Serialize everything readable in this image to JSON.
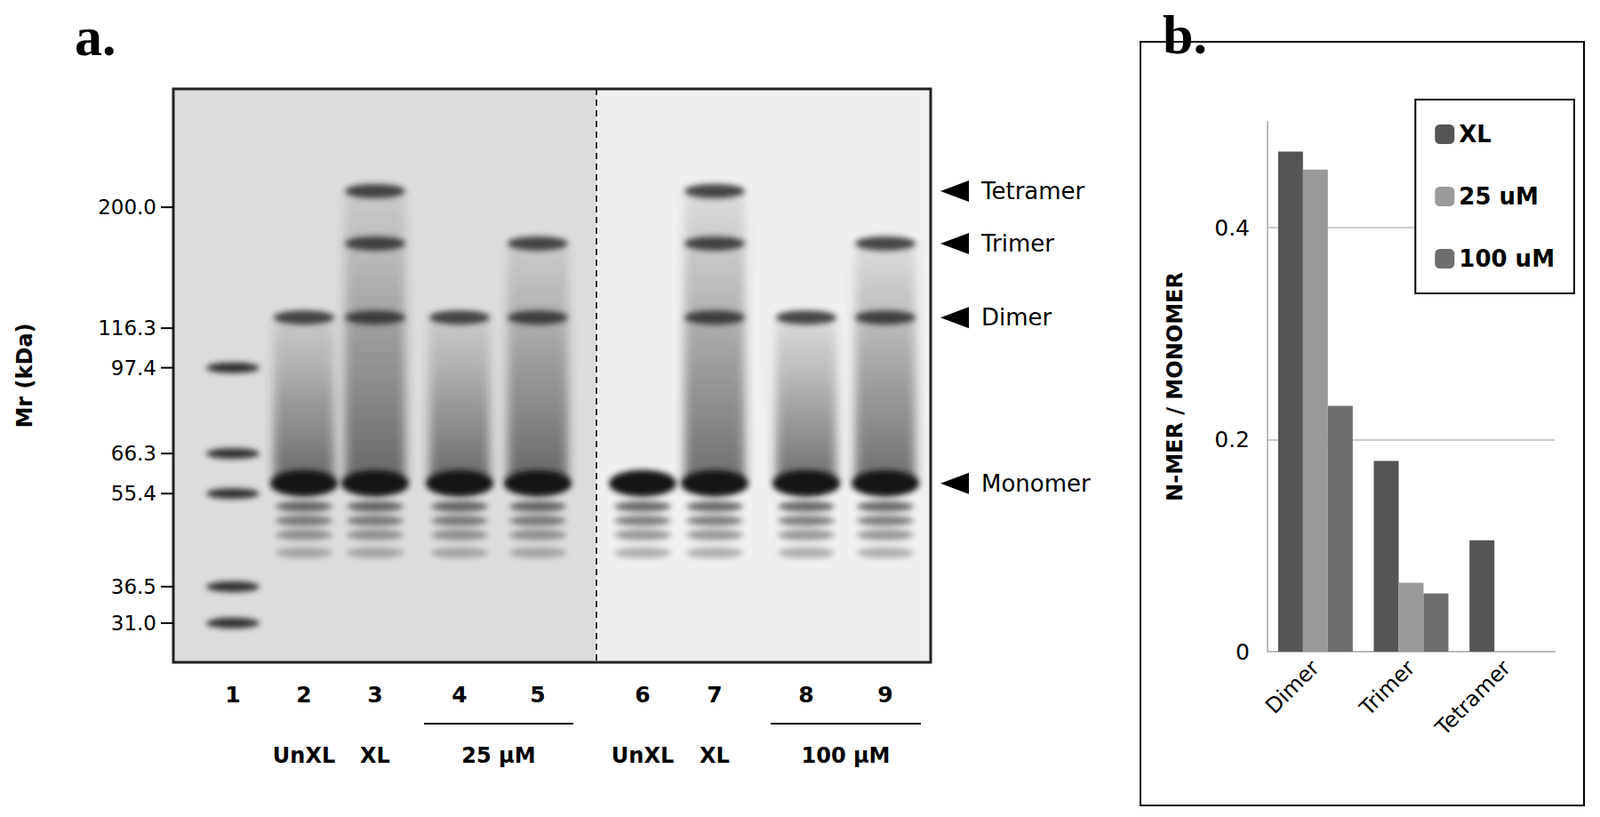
{
  "figure": {
    "panel_a": {
      "label": "a.",
      "y_label": "Mr (kDa)",
      "ylim": [
        26,
        340
      ],
      "ticks": [
        {
          "value": 200,
          "label": "200.0"
        },
        116.3,
        97.4,
        66.3,
        55.4,
        36.5,
        {
          "value": 31,
          "label": "31.0"
        }
      ],
      "bands": [
        {
          "label": "Tetramer",
          "mw": 215
        },
        {
          "label": "Trimer",
          "mw": 170
        },
        {
          "label": "Dimer",
          "mw": 122
        },
        {
          "label": "Monomer",
          "mw": 58
        }
      ],
      "lanes": [
        {
          "number": "1",
          "label": null,
          "ladder": [
            97.4,
            66.3,
            55.4,
            36.5,
            31.0
          ]
        },
        {
          "number": "2",
          "label": "UnXL",
          "bands": [
            "Monomer",
            "Dimer"
          ]
        },
        {
          "number": "3",
          "label": "XL",
          "bands": [
            "Monomer",
            "Dimer",
            "Trimer",
            "Tetramer"
          ]
        },
        {
          "number": "4",
          "label": null,
          "bands": [
            "Monomer",
            "Dimer"
          ]
        },
        {
          "number": "5",
          "label": null,
          "bands": [
            "Monomer",
            "Dimer",
            "Trimer"
          ]
        },
        {
          "number": "6",
          "label": "UnXL",
          "bands": [
            "Monomer"
          ]
        },
        {
          "number": "7",
          "label": "XL",
          "bands": [
            "Monomer",
            "Dimer",
            "Trimer",
            "Tetramer"
          ]
        },
        {
          "number": "8",
          "label": null,
          "bands": [
            "Monomer",
            "Dimer"
          ]
        },
        {
          "number": "9",
          "label": null,
          "bands": [
            "Monomer",
            "Dimer",
            "Trimer"
          ]
        }
      ],
      "groups": [
        {
          "label": "25 µM",
          "lanes": [
            "4",
            "5"
          ]
        },
        {
          "label": "100 µM",
          "lanes": [
            "8",
            "9"
          ]
        }
      ],
      "divider_after_lane": "5"
    },
    "panel_b": {
      "label": "b."
    }
  },
  "chart_data": {
    "type": "bar",
    "y_label": "N-MER / MONOMER",
    "categories": [
      "Dimer",
      "Trimer",
      "Tetramer"
    ],
    "series": [
      {
        "name": "XL",
        "color": "#555555",
        "values": [
          0.472,
          0.18,
          0.105
        ]
      },
      {
        "name": "25 uM",
        "color": "#9a9a9a",
        "values": [
          0.455,
          0.065,
          null
        ]
      },
      {
        "name": "100 uM",
        "color": "#6e6e6e",
        "values": [
          0.232,
          0.055,
          null
        ]
      }
    ],
    "ylim": [
      0,
      0.5
    ],
    "yticks": [
      0,
      0.2,
      0.4
    ],
    "grid": true,
    "legend": "top-right"
  }
}
